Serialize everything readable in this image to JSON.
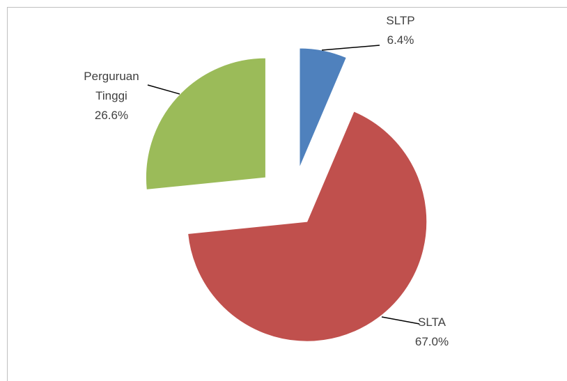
{
  "chart_data": {
    "type": "pie",
    "categories": [
      "SLTP",
      "SLTA",
      "Perguruan Tinggi"
    ],
    "values": [
      6.4,
      67.0,
      26.6
    ],
    "value_labels": [
      "6.4%",
      "67.0%",
      "26.6%"
    ],
    "colors": [
      "#4f81bd",
      "#c0504d",
      "#9bbb59"
    ]
  }
}
